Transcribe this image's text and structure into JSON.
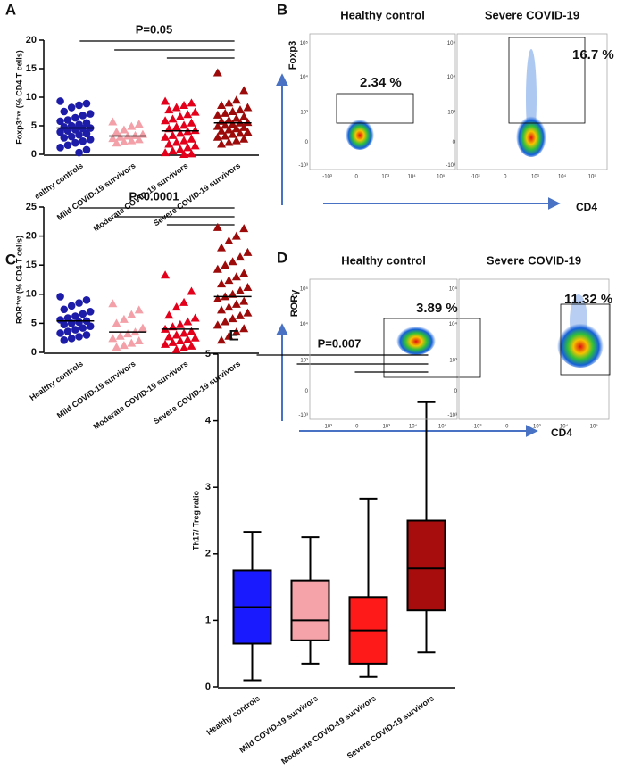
{
  "chart_data": [
    {
      "panel": "A",
      "type": "dotplot",
      "title": "P=0.05",
      "ylabel": "Foxp3⁺ᵛᵉ (% CD4 T cells)",
      "categories": [
        "ealthy controls",
        "Mild COVID-19 survivors",
        "Moderate COVID-19 survivors",
        "Severe COVID-19 survivors"
      ],
      "ylim": [
        0,
        20
      ],
      "yticks": [
        0,
        5,
        10,
        15,
        20
      ],
      "groups": [
        {
          "color": "#1c1ca8",
          "marker": "circle",
          "median": 4.6,
          "values": [
            9.3,
            8.9,
            8.6,
            8.2,
            7.5,
            7.1,
            6.8,
            6.4,
            6.0,
            5.8,
            5.5,
            5.2,
            5.0,
            4.8,
            4.6,
            4.5,
            4.3,
            4.1,
            3.9,
            3.6,
            3.4,
            3.1,
            2.9,
            2.6,
            2.3,
            2.0,
            1.6,
            1.2,
            0.8,
            0.3
          ]
        },
        {
          "color": "#f4a0a8",
          "marker": "triangle",
          "median": 3.2,
          "values": [
            5.7,
            5.3,
            4.9,
            4.3,
            3.9,
            3.5,
            3.3,
            3.2,
            3.0,
            2.8,
            2.6,
            2.4,
            2.2,
            2.0
          ]
        },
        {
          "color": "#e3001b",
          "marker": "triangle",
          "median": 4.1,
          "values": [
            9.3,
            9.0,
            8.6,
            8.2,
            7.8,
            7.4,
            7.0,
            6.6,
            6.2,
            5.9,
            5.5,
            5.1,
            4.8,
            4.5,
            4.2,
            4.0,
            3.7,
            3.3,
            3.0,
            2.7,
            2.4,
            2.1,
            1.8,
            1.5,
            1.2,
            0.9,
            0.6,
            0.3,
            0.1,
            0.0
          ]
        },
        {
          "color": "#9c0a0a",
          "marker": "triangle",
          "median": 5.5,
          "values": [
            14.3,
            11.2,
            9.5,
            9.0,
            8.6,
            8.2,
            7.8,
            7.5,
            7.2,
            6.9,
            6.6,
            6.3,
            6.0,
            5.8,
            5.6,
            5.5,
            5.3,
            5.1,
            4.9,
            4.7,
            4.5,
            4.3,
            4.1,
            3.9,
            3.7,
            3.5,
            3.2,
            3.0,
            2.7,
            2.4,
            2.1,
            1.8
          ]
        }
      ]
    },
    {
      "panel": "C",
      "type": "dotplot",
      "title": "P<0.0001",
      "ylabel": "ROR⁺ᵛᵉ (% CD4 T cells)",
      "categories": [
        "Healthy controls",
        "Mild COVID-19 survivors",
        "Moderate COVID-19 survivors",
        "Severe COVID-19 survivors"
      ],
      "ylim": [
        0,
        25
      ],
      "yticks": [
        0,
        5,
        10,
        15,
        20,
        25
      ],
      "groups": [
        {
          "color": "#1c1ca8",
          "marker": "circle",
          "median": 5.4,
          "values": [
            9.6,
            9.0,
            8.5,
            8.0,
            7.4,
            7.0,
            6.6,
            6.2,
            5.9,
            5.6,
            5.4,
            5.2,
            5.0,
            4.8,
            4.5,
            4.2,
            3.9,
            3.6,
            3.3,
            3.0,
            2.7,
            2.4,
            2.1
          ]
        },
        {
          "color": "#f4a0a8",
          "marker": "triangle",
          "median": 3.5,
          "values": [
            8.4,
            7.3,
            6.5,
            5.7,
            5.0,
            4.2,
            3.5,
            3.2,
            2.8,
            2.4,
            2.0,
            1.6,
            1.2,
            0.9
          ]
        },
        {
          "color": "#e3001b",
          "marker": "triangle",
          "median": 4.0,
          "values": [
            13.3,
            10.5,
            8.6,
            7.8,
            6.4,
            5.9,
            5.3,
            4.8,
            4.4,
            4.0,
            3.6,
            3.3,
            3.0,
            2.7,
            2.5,
            2.2,
            2.0,
            1.7,
            1.4,
            1.1,
            0.8,
            0.5
          ]
        },
        {
          "color": "#9c0a0a",
          "marker": "triangle",
          "median": 9.6,
          "values": [
            21.5,
            21.3,
            20.0,
            19.2,
            18.0,
            17.2,
            16.4,
            15.6,
            15.0,
            14.3,
            13.6,
            13.0,
            12.4,
            11.8,
            11.2,
            10.6,
            10.0,
            9.6,
            9.2,
            8.8,
            8.3,
            7.8,
            7.3,
            6.8,
            6.3,
            5.8,
            5.3,
            4.7,
            4.1,
            3.5,
            2.8,
            2.1
          ]
        }
      ]
    },
    {
      "panel": "E",
      "type": "box",
      "title": "P=0.007",
      "ylabel": "Th17/ Treg ratio",
      "categories": [
        "Healthy controls",
        "Mild COVID-19 survivors",
        "Moderate COVID-19 survivors",
        "Severe COVID-19 survivors"
      ],
      "ylim": [
        0,
        5
      ],
      "yticks": [
        0,
        1,
        2,
        3,
        4,
        5
      ],
      "colors": [
        "#1a1aff",
        "#f5a3a8",
        "#ff1a1a",
        "#a80d0d"
      ],
      "min": [
        0.1,
        0.35,
        0.15,
        0.52
      ],
      "q1": [
        0.65,
        0.7,
        0.35,
        1.15
      ],
      "median": [
        1.2,
        1.0,
        0.85,
        1.78
      ],
      "q3": [
        1.75,
        1.6,
        1.35,
        2.5
      ],
      "max": [
        2.33,
        2.25,
        2.83,
        4.28
      ]
    }
  ],
  "flow_panels": [
    {
      "panel": "B",
      "titles": [
        "Healthy control",
        "Severe COVID-19"
      ],
      "gates": [
        "2.34 %",
        "16.7 %"
      ],
      "ylabel": "Foxp3",
      "xlabel": "CD4",
      "yticks": [
        "10⁵",
        "10⁴",
        "10³",
        "0",
        "-10³"
      ],
      "xticks": [
        "-10³",
        "0",
        "10³",
        "10⁴",
        "10⁵"
      ]
    },
    {
      "panel": "D",
      "titles": [
        "Healthy control",
        "Severe COVID-19"
      ],
      "gates": [
        "3.89 %",
        "11.32 %"
      ],
      "ylabel": "RORγ",
      "xlabel": "CD4",
      "yticks": [
        "10⁵",
        "10⁴",
        "10³",
        "0",
        "-10³"
      ],
      "xticks": [
        "-10³",
        "0",
        "10³",
        "10⁴",
        "10⁵"
      ]
    }
  ]
}
